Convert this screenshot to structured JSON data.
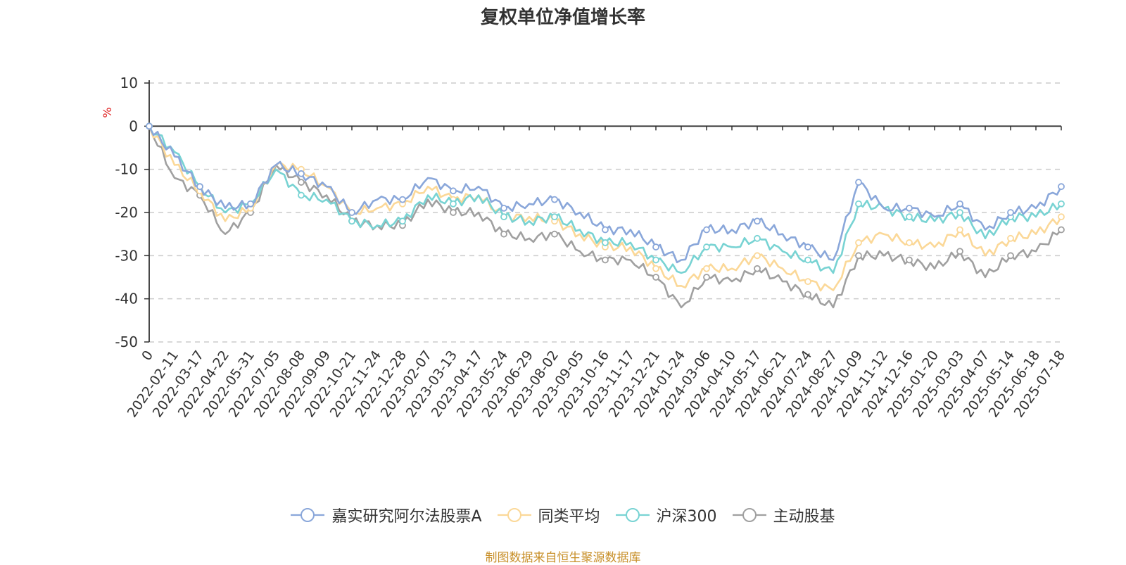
{
  "chart_data": {
    "type": "line",
    "title": "复权单位净值增长率",
    "ylabel": "%",
    "ylim": [
      -50,
      10
    ],
    "yticks": [
      10,
      0,
      -10,
      -20,
      -30,
      -40,
      -50
    ],
    "x_labels": [
      "0",
      "2022-02-11",
      "2022-03-17",
      "2022-04-22",
      "2022-05-31",
      "2022-07-05",
      "2022-08-08",
      "2022-09-09",
      "2022-10-21",
      "2022-11-24",
      "2022-12-28",
      "2023-02-07",
      "2023-03-13",
      "2023-04-17",
      "2023-05-24",
      "2023-06-29",
      "2023-08-02",
      "2023-09-05",
      "2023-10-16",
      "2023-11-17",
      "2023-12-21",
      "2024-01-24",
      "2024-03-06",
      "2024-04-10",
      "2024-05-17",
      "2024-06-21",
      "2024-07-24",
      "2024-08-27",
      "2024-10-09",
      "2024-11-12",
      "2024-12-16",
      "2025-01-20",
      "2025-03-03",
      "2025-04-07",
      "2025-05-14",
      "2025-06-18",
      "2025-07-18"
    ],
    "series": [
      {
        "name": "嘉实研究阿尔法股票A",
        "color": "#8aa7da",
        "values": [
          0,
          -7,
          -14,
          -19,
          -18,
          -9,
          -11,
          -14,
          -20,
          -17,
          -17,
          -12,
          -15,
          -14,
          -19,
          -18,
          -17,
          -20,
          -24,
          -24,
          -28,
          -31,
          -24,
          -24,
          -22,
          -25,
          -28,
          -31,
          -13,
          -19,
          -19,
          -21,
          -18,
          -24,
          -20,
          -19,
          -14
        ]
      },
      {
        "name": "同类平均",
        "color": "#fbd898",
        "values": [
          0,
          -9,
          -15,
          -22,
          -19,
          -9,
          -10,
          -14,
          -20,
          -19,
          -18,
          -14,
          -17,
          -16,
          -21,
          -21,
          -22,
          -25,
          -28,
          -28,
          -33,
          -37,
          -33,
          -33,
          -30,
          -33,
          -36,
          -38,
          -27,
          -25,
          -27,
          -28,
          -24,
          -30,
          -26,
          -25,
          -21
        ]
      },
      {
        "name": "沪深300",
        "color": "#78d3d3",
        "values": [
          0,
          -6,
          -14,
          -20,
          -18,
          -10,
          -16,
          -17,
          -22,
          -23,
          -22,
          -16,
          -18,
          -16,
          -21,
          -22,
          -21,
          -24,
          -27,
          -27,
          -31,
          -34,
          -28,
          -28,
          -26,
          -29,
          -31,
          -34,
          -18,
          -19,
          -21,
          -22,
          -20,
          -26,
          -21,
          -21,
          -18
        ]
      },
      {
        "name": "主动股基",
        "color": "#a0a0a0",
        "values": [
          0,
          -12,
          -16,
          -25,
          -20,
          -9,
          -13,
          -16,
          -22,
          -23,
          -23,
          -17,
          -20,
          -20,
          -25,
          -26,
          -25,
          -29,
          -31,
          -31,
          -35,
          -42,
          -35,
          -36,
          -33,
          -36,
          -39,
          -42,
          -30,
          -30,
          -31,
          -33,
          -29,
          -35,
          -30,
          -29,
          -24
        ]
      }
    ],
    "legend_position": "bottom-center",
    "grid": "horizontal-dashed"
  },
  "source_note": "制图数据来自恒生聚源数据库"
}
